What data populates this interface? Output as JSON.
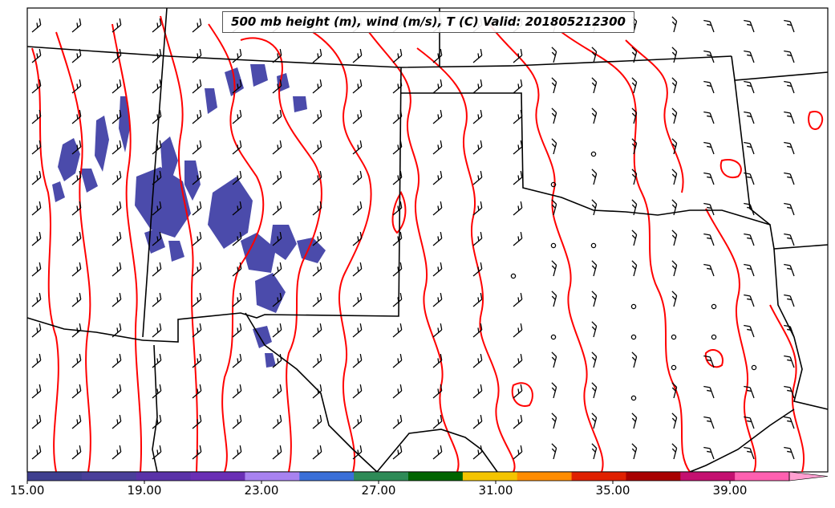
{
  "title": "500 mb height (m), wind (m/s), T (C) Valid: 201805212300",
  "colorbar": {
    "tick_labels": [
      "15.00",
      "19.00",
      "23.00",
      "27.00",
      "31.00",
      "35.00",
      "39.00"
    ],
    "segment_colors": [
      "#3f3f8f",
      "#4a3f9a",
      "#5a32a8",
      "#6a2fb5",
      "#a882f0",
      "#3a6fd8",
      "#2e8b57",
      "#006400",
      "#f4c400",
      "#ff8c00",
      "#e02000",
      "#a80000",
      "#c41070",
      "#ff60b0"
    ],
    "extend_color": "#ff9fd0"
  },
  "colors": {
    "temperature_contour": "#ff0000",
    "boundaries": "#000000",
    "shading": "#4b4bab"
  }
}
